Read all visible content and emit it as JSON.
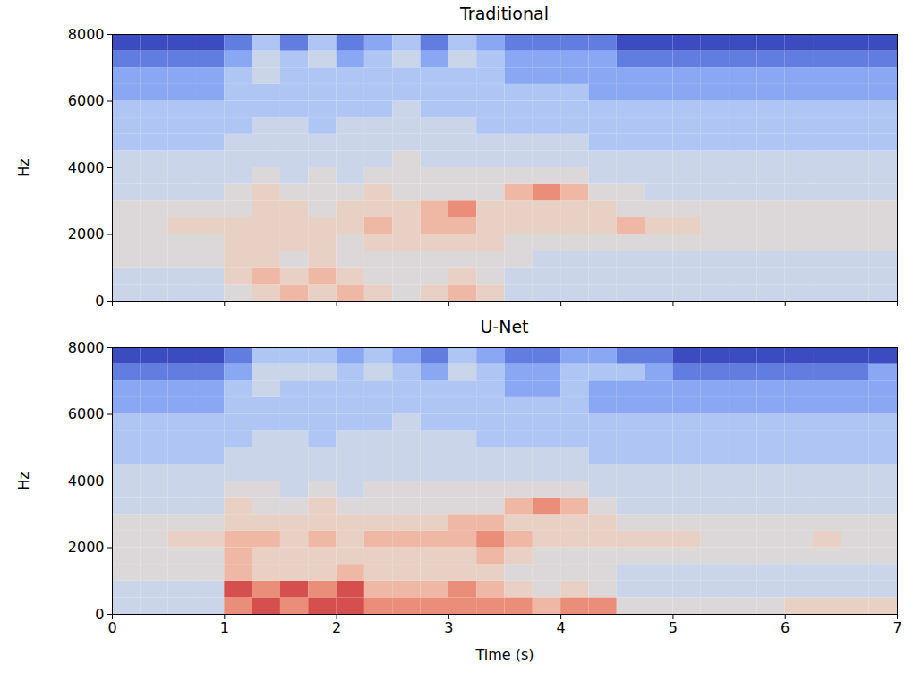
{
  "chart_data": [
    {
      "type": "heatmap",
      "title": "Traditional",
      "ylabel": "Hz",
      "xlim": [
        0,
        7
      ],
      "ylim": [
        0,
        8000
      ],
      "xticks": [
        0,
        1,
        2,
        3,
        4,
        5,
        6,
        7
      ],
      "yticks": [
        0,
        2000,
        4000,
        6000,
        8000
      ],
      "tick_labels": "y",
      "zlim": [
        0,
        10
      ],
      "x_edges": [
        0,
        0.25,
        0.5,
        0.75,
        1,
        1.25,
        1.5,
        1.75,
        2,
        2.25,
        2.5,
        2.75,
        3,
        3.25,
        3.5,
        3.75,
        4,
        4.25,
        4.5,
        4.75,
        5,
        5.25,
        5.5,
        5.75,
        6,
        6.25,
        6.5,
        6.75,
        7
      ],
      "y_edges": [
        0,
        500,
        1000,
        1500,
        2000,
        2500,
        3000,
        3500,
        4000,
        4500,
        5000,
        5500,
        6000,
        6500,
        7000,
        7500,
        8000
      ],
      "cells": [
        [
          4,
          4,
          4,
          4,
          5,
          6,
          7,
          6,
          7,
          6,
          5,
          6,
          7,
          6,
          4,
          4,
          4,
          4,
          4,
          4,
          4,
          4,
          4,
          4,
          4,
          4,
          4,
          4
        ],
        [
          4,
          4,
          4,
          4,
          6,
          7,
          6,
          7,
          6,
          5,
          5,
          5,
          6,
          5,
          4,
          4,
          4,
          4,
          4,
          4,
          4,
          4,
          4,
          4,
          4,
          4,
          4,
          4
        ],
        [
          5,
          5,
          5,
          5,
          6,
          6,
          5,
          6,
          5,
          5,
          5,
          5,
          5,
          5,
          5,
          4,
          4,
          4,
          4,
          4,
          4,
          4,
          4,
          4,
          4,
          4,
          4,
          4
        ],
        [
          5,
          5,
          5,
          5,
          6,
          6,
          6,
          6,
          5,
          6,
          6,
          6,
          6,
          6,
          5,
          5,
          5,
          5,
          5,
          5,
          5,
          5,
          5,
          5,
          5,
          5,
          5,
          5
        ],
        [
          5,
          5,
          6,
          6,
          6,
          6,
          6,
          6,
          6,
          7,
          6,
          7,
          7,
          6,
          6,
          6,
          6,
          6,
          7,
          6,
          6,
          5,
          5,
          5,
          5,
          5,
          5,
          5
        ],
        [
          5,
          5,
          5,
          5,
          5,
          6,
          6,
          5,
          6,
          6,
          6,
          7,
          8,
          6,
          6,
          6,
          6,
          6,
          5,
          5,
          5,
          5,
          5,
          5,
          5,
          5,
          5,
          5
        ],
        [
          4,
          4,
          4,
          4,
          5,
          6,
          5,
          5,
          5,
          6,
          5,
          5,
          5,
          5,
          7,
          8,
          7,
          5,
          5,
          4,
          4,
          4,
          4,
          4,
          4,
          4,
          4,
          4
        ],
        [
          4,
          4,
          4,
          4,
          4,
          5,
          4,
          5,
          4,
          5,
          5,
          5,
          5,
          5,
          5,
          5,
          5,
          4,
          4,
          4,
          4,
          4,
          4,
          4,
          4,
          4,
          4,
          4
        ],
        [
          4,
          4,
          4,
          4,
          4,
          4,
          4,
          4,
          4,
          4,
          5,
          4,
          4,
          4,
          4,
          4,
          4,
          4,
          4,
          4,
          4,
          4,
          4,
          4,
          4,
          4,
          4,
          4
        ],
        [
          3,
          3,
          3,
          3,
          4,
          4,
          4,
          4,
          4,
          4,
          4,
          4,
          4,
          4,
          4,
          4,
          4,
          3,
          3,
          3,
          3,
          3,
          3,
          3,
          3,
          3,
          3,
          3
        ],
        [
          3,
          3,
          3,
          3,
          3,
          4,
          4,
          3,
          4,
          4,
          4,
          4,
          4,
          3,
          3,
          3,
          3,
          3,
          3,
          3,
          3,
          3,
          3,
          3,
          3,
          3,
          3,
          3
        ],
        [
          3,
          3,
          3,
          3,
          3,
          3,
          3,
          3,
          3,
          3,
          4,
          3,
          3,
          3,
          3,
          3,
          3,
          3,
          3,
          3,
          3,
          3,
          3,
          3,
          3,
          3,
          3,
          3
        ],
        [
          2,
          2,
          2,
          2,
          3,
          3,
          3,
          3,
          3,
          3,
          3,
          3,
          3,
          3,
          3,
          3,
          3,
          2,
          2,
          2,
          2,
          2,
          2,
          2,
          2,
          2,
          2,
          2
        ],
        [
          2,
          2,
          2,
          2,
          3,
          4,
          3,
          3,
          3,
          3,
          3,
          3,
          3,
          3,
          2,
          2,
          2,
          2,
          2,
          2,
          2,
          2,
          2,
          2,
          2,
          2,
          2,
          2
        ],
        [
          1,
          1,
          1,
          1,
          2,
          4,
          3,
          4,
          2,
          3,
          4,
          2,
          4,
          3,
          2,
          2,
          2,
          2,
          1,
          1,
          1,
          1,
          1,
          1,
          1,
          1,
          1,
          1
        ],
        [
          0,
          0,
          0,
          0,
          1,
          3,
          1,
          3,
          1,
          2,
          3,
          1,
          3,
          2,
          1,
          1,
          1,
          1,
          0,
          0,
          0,
          0,
          0,
          0,
          0,
          0,
          0,
          0
        ]
      ]
    },
    {
      "type": "heatmap",
      "title": "U-Net",
      "xlabel": "Time (s)",
      "ylabel": "Hz",
      "xlim": [
        0,
        7
      ],
      "ylim": [
        0,
        8000
      ],
      "xticks": [
        0,
        1,
        2,
        3,
        4,
        5,
        6,
        7
      ],
      "yticks": [
        0,
        2000,
        4000,
        6000,
        8000
      ],
      "zlim": [
        0,
        10
      ],
      "x_edges": [
        0,
        0.25,
        0.5,
        0.75,
        1,
        1.25,
        1.5,
        1.75,
        2,
        2.25,
        2.5,
        2.75,
        3,
        3.25,
        3.5,
        3.75,
        4,
        4.25,
        4.5,
        4.75,
        5,
        5.25,
        5.5,
        5.75,
        6,
        6.25,
        6.5,
        6.75,
        7
      ],
      "y_edges": [
        0,
        500,
        1000,
        1500,
        2000,
        2500,
        3000,
        3500,
        4000,
        4500,
        5000,
        5500,
        6000,
        6500,
        7000,
        7500,
        8000
      ],
      "cells": [
        [
          4,
          4,
          4,
          4,
          8,
          9,
          8,
          9,
          9,
          8,
          8,
          8,
          8,
          8,
          8,
          7,
          8,
          8,
          5,
          5,
          5,
          5,
          5,
          5,
          6,
          6,
          6,
          6
        ],
        [
          4,
          4,
          4,
          4,
          9,
          8,
          9,
          8,
          9,
          7,
          7,
          7,
          8,
          7,
          6,
          5,
          6,
          5,
          4,
          4,
          4,
          4,
          4,
          4,
          4,
          4,
          4,
          4
        ],
        [
          5,
          5,
          5,
          5,
          7,
          6,
          6,
          6,
          7,
          6,
          6,
          6,
          6,
          6,
          5,
          5,
          5,
          5,
          4,
          4,
          4,
          4,
          4,
          4,
          4,
          4,
          4,
          4
        ],
        [
          5,
          5,
          5,
          5,
          7,
          6,
          6,
          6,
          6,
          6,
          6,
          6,
          6,
          7,
          6,
          5,
          5,
          5,
          5,
          5,
          5,
          5,
          5,
          5,
          5,
          5,
          5,
          5
        ],
        [
          5,
          5,
          6,
          6,
          7,
          7,
          6,
          7,
          6,
          7,
          7,
          7,
          7,
          8,
          7,
          6,
          6,
          6,
          6,
          6,
          6,
          5,
          5,
          5,
          5,
          6,
          5,
          5
        ],
        [
          5,
          5,
          5,
          5,
          6,
          6,
          6,
          6,
          6,
          6,
          6,
          6,
          7,
          7,
          6,
          6,
          6,
          6,
          5,
          5,
          5,
          5,
          5,
          5,
          5,
          5,
          5,
          5
        ],
        [
          4,
          4,
          4,
          4,
          6,
          5,
          5,
          6,
          5,
          5,
          5,
          5,
          5,
          5,
          7,
          8,
          7,
          5,
          4,
          4,
          4,
          4,
          4,
          4,
          4,
          4,
          4,
          4
        ],
        [
          4,
          4,
          4,
          4,
          5,
          5,
          4,
          5,
          4,
          5,
          5,
          5,
          5,
          5,
          5,
          5,
          5,
          4,
          4,
          4,
          4,
          4,
          4,
          4,
          4,
          4,
          4,
          4
        ],
        [
          4,
          4,
          4,
          4,
          4,
          4,
          4,
          4,
          4,
          4,
          4,
          4,
          4,
          4,
          4,
          4,
          4,
          4,
          4,
          4,
          4,
          4,
          4,
          4,
          4,
          4,
          4,
          4
        ],
        [
          3,
          3,
          3,
          3,
          4,
          4,
          4,
          4,
          4,
          4,
          4,
          4,
          4,
          4,
          4,
          4,
          4,
          3,
          3,
          3,
          3,
          3,
          3,
          3,
          3,
          3,
          3,
          3
        ],
        [
          3,
          3,
          3,
          3,
          3,
          4,
          4,
          3,
          4,
          4,
          4,
          4,
          4,
          3,
          3,
          3,
          3,
          3,
          3,
          3,
          3,
          3,
          3,
          3,
          3,
          3,
          3,
          3
        ],
        [
          3,
          3,
          3,
          3,
          3,
          3,
          3,
          3,
          3,
          3,
          4,
          3,
          3,
          3,
          3,
          3,
          3,
          3,
          3,
          3,
          3,
          3,
          3,
          3,
          3,
          3,
          3,
          3
        ],
        [
          2,
          2,
          2,
          2,
          3,
          3,
          3,
          3,
          3,
          3,
          3,
          3,
          3,
          3,
          3,
          3,
          3,
          2,
          2,
          2,
          2,
          2,
          2,
          2,
          2,
          2,
          2,
          2
        ],
        [
          2,
          2,
          2,
          2,
          3,
          4,
          3,
          3,
          3,
          3,
          3,
          3,
          3,
          3,
          2,
          2,
          3,
          2,
          2,
          2,
          2,
          2,
          2,
          2,
          2,
          2,
          2,
          2
        ],
        [
          1,
          1,
          1,
          1,
          2,
          4,
          4,
          4,
          3,
          4,
          3,
          2,
          4,
          3,
          2,
          2,
          3,
          3,
          3,
          2,
          1,
          1,
          1,
          1,
          1,
          1,
          1,
          2
        ],
        [
          0,
          0,
          0,
          0,
          1,
          3,
          3,
          3,
          2,
          3,
          2,
          1,
          3,
          2,
          1,
          1,
          2,
          2,
          1,
          1,
          0,
          0,
          0,
          0,
          0,
          0,
          0,
          0
        ]
      ]
    }
  ]
}
